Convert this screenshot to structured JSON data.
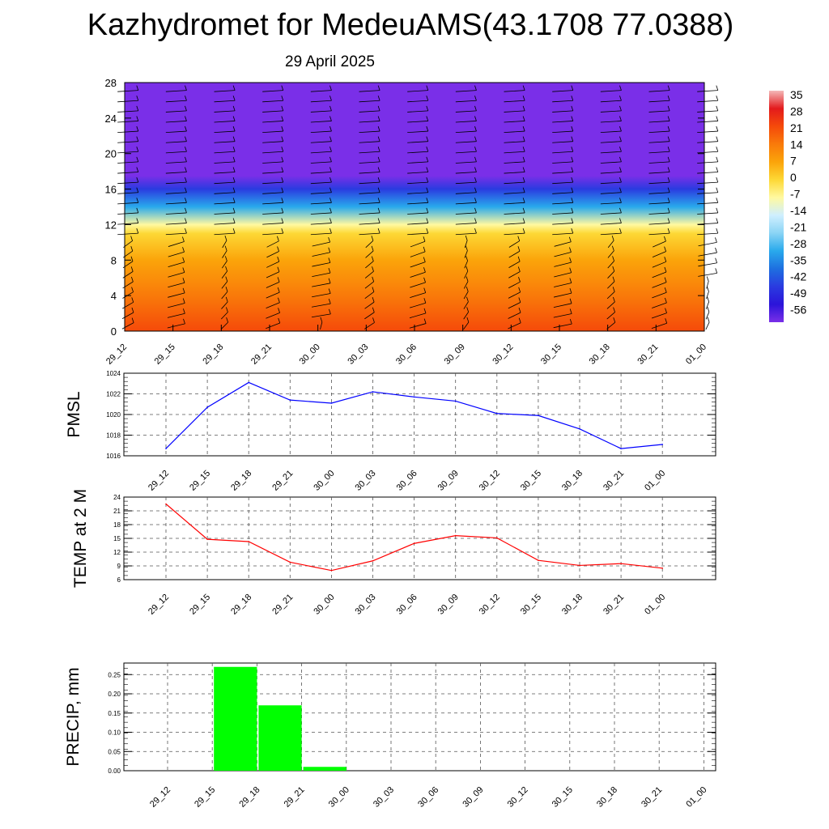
{
  "title": "Kazhydromet for MedeuAMS(43.1708 77.0388)",
  "subtitle": "29 April 2025",
  "chart_data": [
    {
      "type": "heatmap",
      "name": "cross-section",
      "ylim": [
        0,
        28
      ],
      "yticks": [
        "0",
        "4",
        "8",
        "12",
        "16",
        "20",
        "24",
        "28"
      ],
      "categories": [
        "29_12",
        "29_15",
        "29_18",
        "29_21",
        "30_00",
        "30_03",
        "30_06",
        "30_09",
        "30_12",
        "30_15",
        "30_18",
        "30_21",
        "01_00"
      ],
      "temperature_by_level": [
        {
          "level": 0,
          "value": 24
        },
        {
          "level": 4,
          "value": 14
        },
        {
          "level": 8,
          "value": 6
        },
        {
          "level": 11,
          "value": 0
        },
        {
          "level": 12,
          "value": -10
        },
        {
          "level": 14,
          "value": -30
        },
        {
          "level": 16,
          "value": -45
        },
        {
          "level": 17.5,
          "value": -58
        },
        {
          "level": 19,
          "value": -56
        },
        {
          "level": 28,
          "value": -55
        }
      ],
      "colorbar": {
        "labels": [
          "35",
          "28",
          "21",
          "14",
          "7",
          "0",
          "-7",
          "-14",
          "-21",
          "-28",
          "-35",
          "-42",
          "-49",
          "-56"
        ],
        "stops": [
          "#f4b8b8",
          "#e31a1c",
          "#f54a0a",
          "#f97a0a",
          "#fba40a",
          "#fdd835",
          "#fff9a0",
          "#cfefff",
          "#8ad4f5",
          "#29a9ec",
          "#1e6fe0",
          "#2a3be0",
          "#2b14d9",
          "#7a2fe8"
        ]
      },
      "wind_barbs": true
    },
    {
      "type": "line",
      "ylabel": "PMSL",
      "categories": [
        "29_12",
        "29_15",
        "29_18",
        "29_21",
        "30_00",
        "30_03",
        "30_06",
        "30_09",
        "30_12",
        "30_15",
        "30_18",
        "30_21",
        "01_00"
      ],
      "values": [
        1016.7,
        1020.7,
        1023.1,
        1021.4,
        1021.1,
        1022.2,
        1021.7,
        1021.3,
        1020.1,
        1019.9,
        1018.6,
        1016.7,
        1017.1
      ],
      "ylim": [
        1016,
        1024
      ],
      "yticks": [
        "1016",
        "1018",
        "1020",
        "1022",
        "1024"
      ],
      "color": "#0000ff",
      "grid": true
    },
    {
      "type": "line",
      "ylabel": "TEMP at 2 M",
      "categories": [
        "29_12",
        "29_15",
        "29_18",
        "29_21",
        "30_00",
        "30_03",
        "30_06",
        "30_09",
        "30_12",
        "30_15",
        "30_18",
        "30_21",
        "01_00"
      ],
      "values": [
        22.5,
        14.8,
        14.3,
        9.8,
        8.0,
        10.1,
        13.9,
        15.6,
        15.1,
        10.2,
        9.1,
        9.5,
        8.5
      ],
      "ylim": [
        6,
        24
      ],
      "yticks": [
        "6",
        "9",
        "12",
        "15",
        "18",
        "21",
        "24"
      ],
      "color": "#ff0000",
      "grid": true
    },
    {
      "type": "bar",
      "ylabel": "PRECIP, mm",
      "categories": [
        "29_12",
        "29_15",
        "29_18",
        "29_21",
        "30_00",
        "30_03",
        "30_06",
        "30_09",
        "30_12",
        "30_15",
        "30_18",
        "30_21",
        "01_00"
      ],
      "values": [
        0,
        0.27,
        0.17,
        0.01,
        0,
        0,
        0,
        0,
        0,
        0,
        0,
        0,
        0
      ],
      "ylim": [
        0,
        0.28
      ],
      "yticks": [
        "0.00",
        "0.05",
        "0.10",
        "0.15",
        "0.20",
        "0.25"
      ],
      "color": "#00ff00",
      "grid": true
    }
  ]
}
